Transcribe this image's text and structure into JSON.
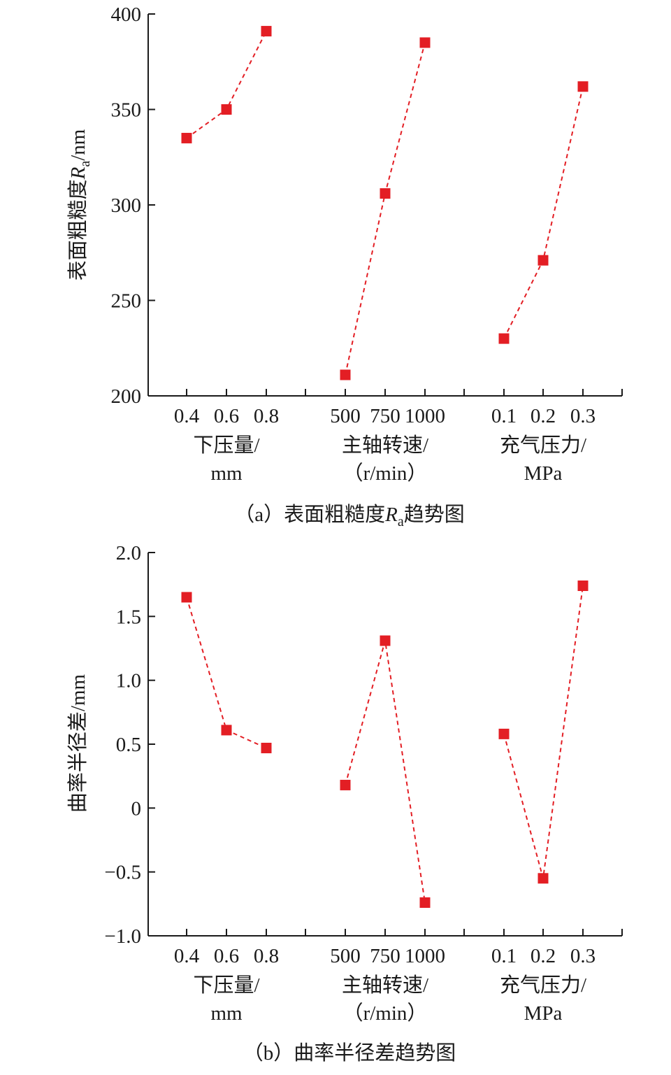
{
  "chart_data": [
    {
      "type": "line",
      "caption": "（a）表面粗糙度Ra趋势图",
      "caption_parts": {
        "pre": "（a）表面粗糙度",
        "italic": "R",
        "sub": "a",
        "post": "趋势图"
      },
      "ylabel": "表面粗糙度Ra/nm",
      "ylabel_parts": {
        "pre": "表面粗糙度",
        "italic": "R",
        "sub": "a",
        "post": "/nm"
      },
      "ylim": [
        200,
        400
      ],
      "yticks": [
        200,
        250,
        300,
        350,
        400
      ],
      "ytick_labels": [
        "200",
        "250",
        "300",
        "350",
        "400"
      ],
      "groups": [
        {
          "name_lines": [
            "下压量/",
            "mm"
          ],
          "categories": [
            "0.4",
            "0.6",
            "0.8"
          ],
          "values": [
            335,
            350,
            391
          ]
        },
        {
          "name_lines": [
            "主轴转速/",
            "（r/min）"
          ],
          "categories": [
            "500",
            "750",
            "1000"
          ],
          "values": [
            211,
            306,
            385
          ]
        },
        {
          "name_lines": [
            "充气压力/",
            "MPa"
          ],
          "categories": [
            "0.1",
            "0.2",
            "0.3"
          ],
          "values": [
            230,
            271,
            362
          ]
        }
      ],
      "marker_color": "#e31e24",
      "line_style": "dashed",
      "grid": false
    },
    {
      "type": "line",
      "caption": "（b）曲率半径差趋势图",
      "ylabel": "曲率半径差/mm",
      "ylim": [
        -1.0,
        2.0
      ],
      "yticks": [
        -1.0,
        -0.5,
        0,
        0.5,
        1.0,
        1.5,
        2.0
      ],
      "ytick_labels": [
        "−1.0",
        "−0.5",
        "0",
        "0.5",
        "1.0",
        "1.5",
        "2.0"
      ],
      "groups": [
        {
          "name_lines": [
            "下压量/",
            "mm"
          ],
          "categories": [
            "0.4",
            "0.6",
            "0.8"
          ],
          "values": [
            1.65,
            0.61,
            0.47
          ]
        },
        {
          "name_lines": [
            "主轴转速/",
            "（r/min）"
          ],
          "categories": [
            "500",
            "750",
            "1000"
          ],
          "values": [
            0.18,
            1.31,
            -0.74
          ]
        },
        {
          "name_lines": [
            "充气压力/",
            "MPa"
          ],
          "categories": [
            "0.1",
            "0.2",
            "0.3"
          ],
          "values": [
            0.58,
            -0.55,
            1.74
          ]
        }
      ],
      "marker_color": "#e31e24",
      "line_style": "dashed",
      "grid": false
    }
  ]
}
